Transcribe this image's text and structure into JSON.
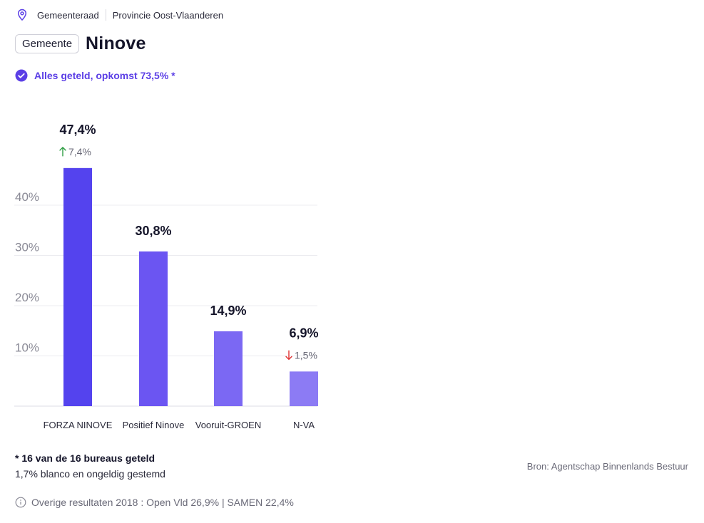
{
  "breadcrumb": {
    "icon": "map-pin-icon",
    "level": "Gemeenteraad",
    "province": "Provincie Oost-Vlaanderen"
  },
  "header": {
    "badge": "Gemeente",
    "title": "Ninove"
  },
  "status": {
    "icon": "check-circle-icon",
    "text": "Alles geteld, opkomst 73,5% *"
  },
  "colors": {
    "accent": "#5b3fe6",
    "up": "#2f9e44",
    "down": "#e03131",
    "bars": [
      "#5443ee",
      "#6b55f2",
      "#7b68f3",
      "#8c7bf4"
    ]
  },
  "chart_data": {
    "type": "bar",
    "categories": [
      "FORZA NINOVE",
      "Positief Ninove",
      "Vooruit-GROEN",
      "N-VA"
    ],
    "values": [
      47.4,
      30.8,
      14.9,
      6.9
    ],
    "value_labels": [
      "47,4%",
      "30,8%",
      "14,9%",
      "6,9%"
    ],
    "changes": [
      {
        "direction": "up",
        "label": "7,4%"
      },
      null,
      null,
      {
        "direction": "down",
        "label": "1,5%"
      }
    ],
    "yticks": [
      10,
      20,
      30,
      40
    ],
    "ytick_labels": [
      "10%",
      "20%",
      "30%",
      "40%"
    ],
    "ylim": [
      0,
      50
    ],
    "grid": true
  },
  "footer": {
    "counted": "* 16 van de 16 bureaus geteld",
    "blank": "1,7% blanco en ongeldig gestemd",
    "source": "Bron: Agentschap Binnenlands Bestuur",
    "other_icon": "info-icon",
    "other_results": "Overige resultaten 2018 : Open Vld 26,9% | SAMEN 22,4%"
  }
}
